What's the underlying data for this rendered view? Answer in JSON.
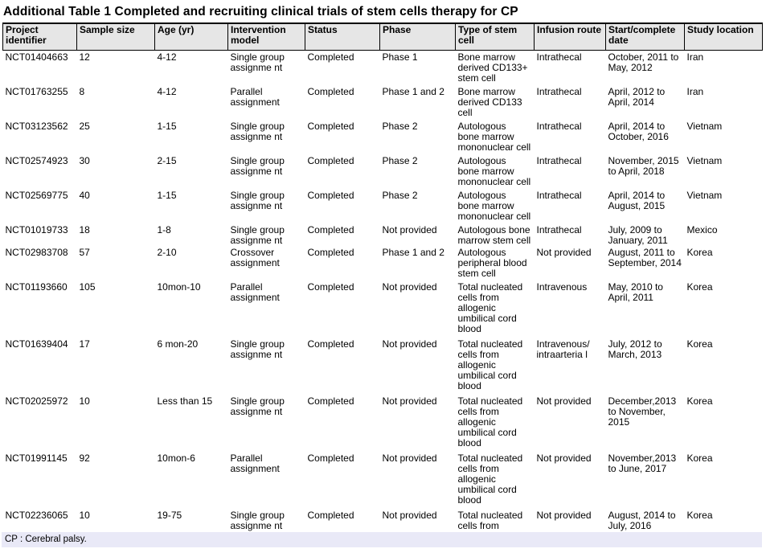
{
  "title": "Additional Table 1 Completed and recruiting clinical trials of stem cells therapy for CP",
  "table": {
    "columns": [
      "Project\nidentifier",
      "Sample size",
      "Age (yr)",
      "Intervention\nmodel",
      "Status",
      "Phase",
      "Type of stem\ncell",
      "Infusion route",
      "Start/complete\ndate",
      "Study location"
    ],
    "rows": [
      [
        "NCT01404663",
        "12",
        "4-12",
        "Single group\nassignme nt",
        "Completed",
        "Phase 1",
        "Bone marrow\nderived CD133+\nstem cell",
        "Intrathecal",
        "October, 2011 to\nMay, 2012",
        "Iran"
      ],
      [
        "NCT01763255",
        "8",
        "4-12",
        "Parallel\nassignment",
        "Completed",
        "Phase 1 and 2",
        "Bone marrow\nderived CD133\ncell",
        "Intrathecal",
        "April, 2012 to\nApril, 2014",
        "Iran"
      ],
      [
        "NCT03123562",
        "25",
        "1-15",
        "Single group\nassignme nt",
        "Completed",
        "Phase 2",
        "Autologous\nbone marrow\nmononuclear cell",
        "Intrathecal",
        "April, 2014 to\nOctober, 2016",
        "Vietnam"
      ],
      [
        "NCT02574923",
        "30",
        "2-15",
        "Single group\nassignme nt",
        "Completed",
        "Phase 2",
        "Autologous\nbone marrow\nmononuclear cell",
        "Intrathecal",
        "November, 2015\nto April, 2018",
        "Vietnam"
      ],
      [
        "NCT02569775",
        "40",
        "1-15",
        "Single group\nassignme nt",
        "Completed",
        "Phase 2",
        "Autologous\nbone marrow\nmononuclear cell",
        "Intrathecal",
        "April, 2014 to\nAugust, 2015",
        "Vietnam"
      ],
      [
        "NCT01019733",
        "18",
        "1-8",
        "Single group\nassignme nt",
        "Completed",
        "Not provided",
        "Autologous bone\nmarrow stem cell",
        "Intrathecal",
        "July, 2009 to\nJanuary, 2011",
        "Mexico"
      ],
      [
        "NCT02983708",
        "57",
        "2-10",
        "Crossover\nassignment",
        "Completed",
        "Phase 1 and 2",
        "Autologous\nperipheral blood\nstem cell",
        "Not provided",
        "August, 2011 to\nSeptember, 2014",
        "Korea"
      ],
      [
        "NCT01193660",
        "105",
        "10mon-10",
        "Parallel\nassignment",
        "Completed",
        "Not provided",
        "Total nucleated\ncells from\nallogenic\numbilical cord\nblood",
        "Intravenous",
        "May, 2010 to\nApril, 2011",
        "Korea"
      ],
      [
        "NCT01639404",
        "17",
        "6 mon-20",
        "Single group\nassignme nt",
        "Completed",
        "Not provided",
        "Total nucleated\ncells from\nallogenic\numbilical cord\nblood",
        "Intravenous/\nintraarteria l",
        "July, 2012 to\nMarch, 2013",
        "Korea"
      ],
      [
        "NCT02025972",
        "10",
        "Less than 15",
        "Single group\nassignme nt",
        "Completed",
        "Not provided",
        "Total nucleated\ncells from\nallogenic\numbilical cord\nblood",
        "Not provided",
        "December,2013\nto November,\n2015",
        "Korea"
      ],
      [
        "NCT01991145",
        "92",
        "10mon-6",
        "Parallel\nassignment",
        "Completed",
        "Not provided",
        "Total nucleated\ncells from\nallogenic\numbilical cord\nblood",
        "Not provided",
        "November,2013\nto June, 2017",
        "Korea"
      ],
      [
        "NCT02236065",
        "10",
        "19-75",
        "Single group\nassignme nt",
        "Completed",
        "Not provided",
        "Total nucleated\ncells from",
        "Not provided",
        "August, 2014 to\nJuly, 2016",
        "Korea"
      ]
    ]
  },
  "footnote": "CP : Cerebral palsy.",
  "colors": {
    "header_bg": "#e6e6e6",
    "footnote_bg": "#e9e9f7",
    "border": "#000000"
  }
}
